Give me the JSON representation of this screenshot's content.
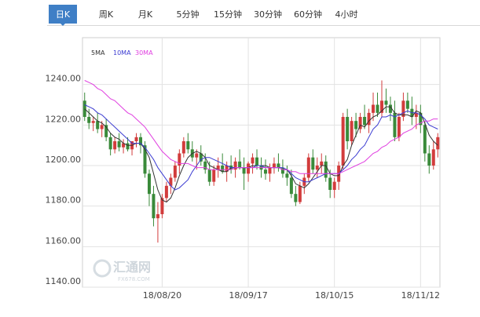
{
  "tabs": [
    "日K",
    "周K",
    "月K",
    "5分钟",
    "15分钟",
    "30分钟",
    "60分钟",
    "4小时"
  ],
  "active_tab": 0,
  "chart_data": {
    "type": "candlestick",
    "watermark": [
      "汇通网",
      "FX678.COM"
    ],
    "up_color": "#d23c3c",
    "down_color": "#3a8a3a",
    "ylim": [
      1140,
      1260
    ],
    "yticks": [
      {
        "value": 1140,
        "label": "1140.00"
      },
      {
        "value": 1160,
        "label": "1160.00"
      },
      {
        "value": 1180,
        "label": "1180.00"
      },
      {
        "value": 1200,
        "label": "1200.00"
      },
      {
        "value": 1220,
        "label": "1220.00"
      },
      {
        "value": 1240,
        "label": "1240.00"
      }
    ],
    "grid": true,
    "categories": [
      null,
      null,
      null,
      null,
      null,
      null,
      null,
      null,
      null,
      null,
      null,
      null,
      null,
      null,
      null,
      null,
      null,
      null,
      "18/08/20",
      null,
      null,
      null,
      null,
      null,
      null,
      null,
      null,
      null,
      null,
      null,
      null,
      null,
      null,
      null,
      null,
      null,
      null,
      null,
      "18/09/17",
      null,
      null,
      null,
      null,
      null,
      null,
      null,
      null,
      null,
      null,
      null,
      null,
      null,
      null,
      null,
      null,
      null,
      null,
      null,
      "18/10/15",
      null,
      null,
      null,
      null,
      null,
      null,
      null,
      null,
      null,
      null,
      null,
      null,
      null,
      null,
      null,
      null,
      null,
      null,
      null,
      "18/11/12",
      null,
      null,
      null,
      null
    ],
    "candles": [
      [
        1232,
        1236,
        1222,
        1224
      ],
      [
        1224,
        1228,
        1218,
        1221
      ],
      [
        1221,
        1224,
        1217,
        1222
      ],
      [
        1222,
        1226,
        1216,
        1218
      ],
      [
        1218,
        1222,
        1214,
        1220
      ],
      [
        1220,
        1223,
        1212,
        1214
      ],
      [
        1214,
        1216,
        1205,
        1208
      ],
      [
        1208,
        1214,
        1206,
        1212
      ],
      [
        1212,
        1216,
        1207,
        1209
      ],
      [
        1209,
        1213,
        1206,
        1211
      ],
      [
        1211,
        1214,
        1207,
        1208
      ],
      [
        1208,
        1212,
        1205,
        1212
      ],
      [
        1212,
        1216,
        1209,
        1214
      ],
      [
        1214,
        1216,
        1206,
        1210
      ],
      [
        1210,
        1212,
        1194,
        1196
      ],
      [
        1196,
        1198,
        1180,
        1186
      ],
      [
        1186,
        1190,
        1170,
        1174
      ],
      [
        1174,
        1182,
        1162,
        1176
      ],
      [
        1176,
        1186,
        1174,
        1184
      ],
      [
        1184,
        1192,
        1182,
        1190
      ],
      [
        1190,
        1196,
        1186,
        1194
      ],
      [
        1194,
        1202,
        1192,
        1200
      ],
      [
        1200,
        1208,
        1196,
        1206
      ],
      [
        1206,
        1214,
        1204,
        1212
      ],
      [
        1212,
        1216,
        1206,
        1208
      ],
      [
        1208,
        1212,
        1202,
        1204
      ],
      [
        1204,
        1208,
        1198,
        1206
      ],
      [
        1206,
        1210,
        1200,
        1202
      ],
      [
        1202,
        1206,
        1196,
        1198
      ],
      [
        1198,
        1202,
        1190,
        1192
      ],
      [
        1192,
        1200,
        1190,
        1198
      ],
      [
        1198,
        1204,
        1194,
        1200
      ],
      [
        1200,
        1206,
        1196,
        1197
      ],
      [
        1197,
        1202,
        1192,
        1200
      ],
      [
        1200,
        1205,
        1196,
        1198
      ],
      [
        1198,
        1204,
        1194,
        1202
      ],
      [
        1202,
        1208,
        1198,
        1199
      ],
      [
        1199,
        1204,
        1188,
        1196
      ],
      [
        1196,
        1202,
        1192,
        1201
      ],
      [
        1201,
        1206,
        1196,
        1204
      ],
      [
        1204,
        1208,
        1198,
        1200
      ],
      [
        1200,
        1204,
        1194,
        1198
      ],
      [
        1198,
        1203,
        1193,
        1196
      ],
      [
        1196,
        1201,
        1192,
        1199
      ],
      [
        1199,
        1204,
        1196,
        1201
      ],
      [
        1201,
        1206,
        1197,
        1199
      ],
      [
        1199,
        1203,
        1194,
        1196
      ],
      [
        1196,
        1200,
        1190,
        1194
      ],
      [
        1194,
        1198,
        1184,
        1186
      ],
      [
        1186,
        1190,
        1180,
        1182
      ],
      [
        1182,
        1192,
        1181,
        1190
      ],
      [
        1190,
        1196,
        1186,
        1194
      ],
      [
        1194,
        1206,
        1192,
        1204
      ],
      [
        1204,
        1208,
        1196,
        1198
      ],
      [
        1198,
        1204,
        1194,
        1200
      ],
      [
        1200,
        1206,
        1196,
        1202
      ],
      [
        1202,
        1205,
        1192,
        1194
      ],
      [
        1194,
        1198,
        1184,
        1188
      ],
      [
        1188,
        1194,
        1184,
        1192
      ],
      [
        1192,
        1202,
        1188,
        1200
      ],
      [
        1200,
        1226,
        1198,
        1224
      ],
      [
        1224,
        1228,
        1208,
        1212
      ],
      [
        1212,
        1224,
        1210,
        1222
      ],
      [
        1222,
        1226,
        1214,
        1218
      ],
      [
        1218,
        1226,
        1216,
        1224
      ],
      [
        1224,
        1230,
        1218,
        1220
      ],
      [
        1220,
        1228,
        1216,
        1226
      ],
      [
        1226,
        1236,
        1222,
        1230
      ],
      [
        1230,
        1236,
        1224,
        1226
      ],
      [
        1226,
        1242,
        1224,
        1232
      ],
      [
        1232,
        1238,
        1226,
        1230
      ],
      [
        1230,
        1234,
        1222,
        1226
      ],
      [
        1226,
        1232,
        1212,
        1214
      ],
      [
        1214,
        1226,
        1212,
        1224
      ],
      [
        1224,
        1236,
        1222,
        1232
      ],
      [
        1232,
        1236,
        1226,
        1228
      ],
      [
        1228,
        1234,
        1220,
        1224
      ],
      [
        1224,
        1230,
        1218,
        1226
      ],
      [
        1226,
        1230,
        1216,
        1220
      ],
      [
        1220,
        1222,
        1202,
        1206
      ],
      [
        1206,
        1210,
        1196,
        1200
      ],
      [
        1200,
        1212,
        1198,
        1208
      ],
      [
        1208,
        1216,
        1204,
        1214
      ]
    ],
    "series": [
      {
        "name": "5MA",
        "color": "#333333",
        "values": [
          1228,
          1226,
          1224,
          1222,
          1221,
          1219,
          1216,
          1214,
          1213,
          1211,
          1210,
          1210,
          1211,
          1211,
          1208,
          1204,
          1196,
          1188,
          1183,
          1182,
          1184,
          1189,
          1195,
          1200,
          1204,
          1206,
          1207,
          1206,
          1204,
          1200,
          1199,
          1198,
          1197,
          1197,
          1199,
          1199,
          1199,
          1199,
          1199,
          1200,
          1200,
          1200,
          1200,
          1199,
          1199,
          1199,
          1198,
          1198,
          1195,
          1191,
          1190,
          1189,
          1191,
          1194,
          1197,
          1200,
          1200,
          1196,
          1195,
          1195,
          1200,
          1203,
          1210,
          1215,
          1220,
          1219,
          1222,
          1224,
          1225,
          1227,
          1229,
          1229,
          1226,
          1225,
          1225,
          1225,
          1224,
          1227,
          1226,
          1221,
          1215,
          1212,
          1210
        ]
      },
      {
        "name": "10MA",
        "color": "#3b3bd1",
        "values": [
          1230,
          1229,
          1228,
          1226,
          1225,
          1223,
          1221,
          1219,
          1217,
          1215,
          1213,
          1211,
          1211,
          1211,
          1209,
          1206,
          1203,
          1199,
          1196,
          1193,
          1190,
          1188,
          1189,
          1191,
          1193,
          1197,
          1200,
          1203,
          1204,
          1204,
          1203,
          1202,
          1201,
          1200,
          1199,
          1199,
          1199,
          1199,
          1199,
          1199,
          1200,
          1200,
          1199,
          1199,
          1199,
          1199,
          1199,
          1198,
          1196,
          1194,
          1193,
          1192,
          1192,
          1193,
          1194,
          1195,
          1196,
          1196,
          1196,
          1196,
          1198,
          1200,
          1203,
          1205,
          1208,
          1210,
          1214,
          1218,
          1220,
          1224,
          1224,
          1225,
          1224,
          1225,
          1226,
          1227,
          1226,
          1226,
          1225,
          1223,
          1220,
          1219,
          1218
        ]
      },
      {
        "name": "30MA",
        "color": "#e040e0",
        "values": [
          1242,
          1241,
          1240,
          1238,
          1237,
          1235,
          1233,
          1232,
          1230,
          1228,
          1226,
          1225,
          1223,
          1221,
          1219,
          1216,
          1213,
          1210,
          1207,
          1205,
          1203,
          1202,
          1201,
          1201,
          1201,
          1200,
          1199,
          1199,
          1199,
          1198,
          1198,
          1198,
          1198,
          1198,
          1198,
          1199,
          1199,
          1199,
          1199,
          1199,
          1199,
          1199,
          1199,
          1199,
          1199,
          1199,
          1198,
          1198,
          1197,
          1197,
          1196,
          1196,
          1196,
          1196,
          1196,
          1196,
          1196,
          1196,
          1196,
          1196,
          1197,
          1198,
          1199,
          1200,
          1201,
          1202,
          1204,
          1206,
          1207,
          1209,
          1210,
          1212,
          1213,
          1214,
          1216,
          1217,
          1218,
          1220,
          1221,
          1222,
          1222,
          1223,
          1223
        ]
      }
    ]
  }
}
